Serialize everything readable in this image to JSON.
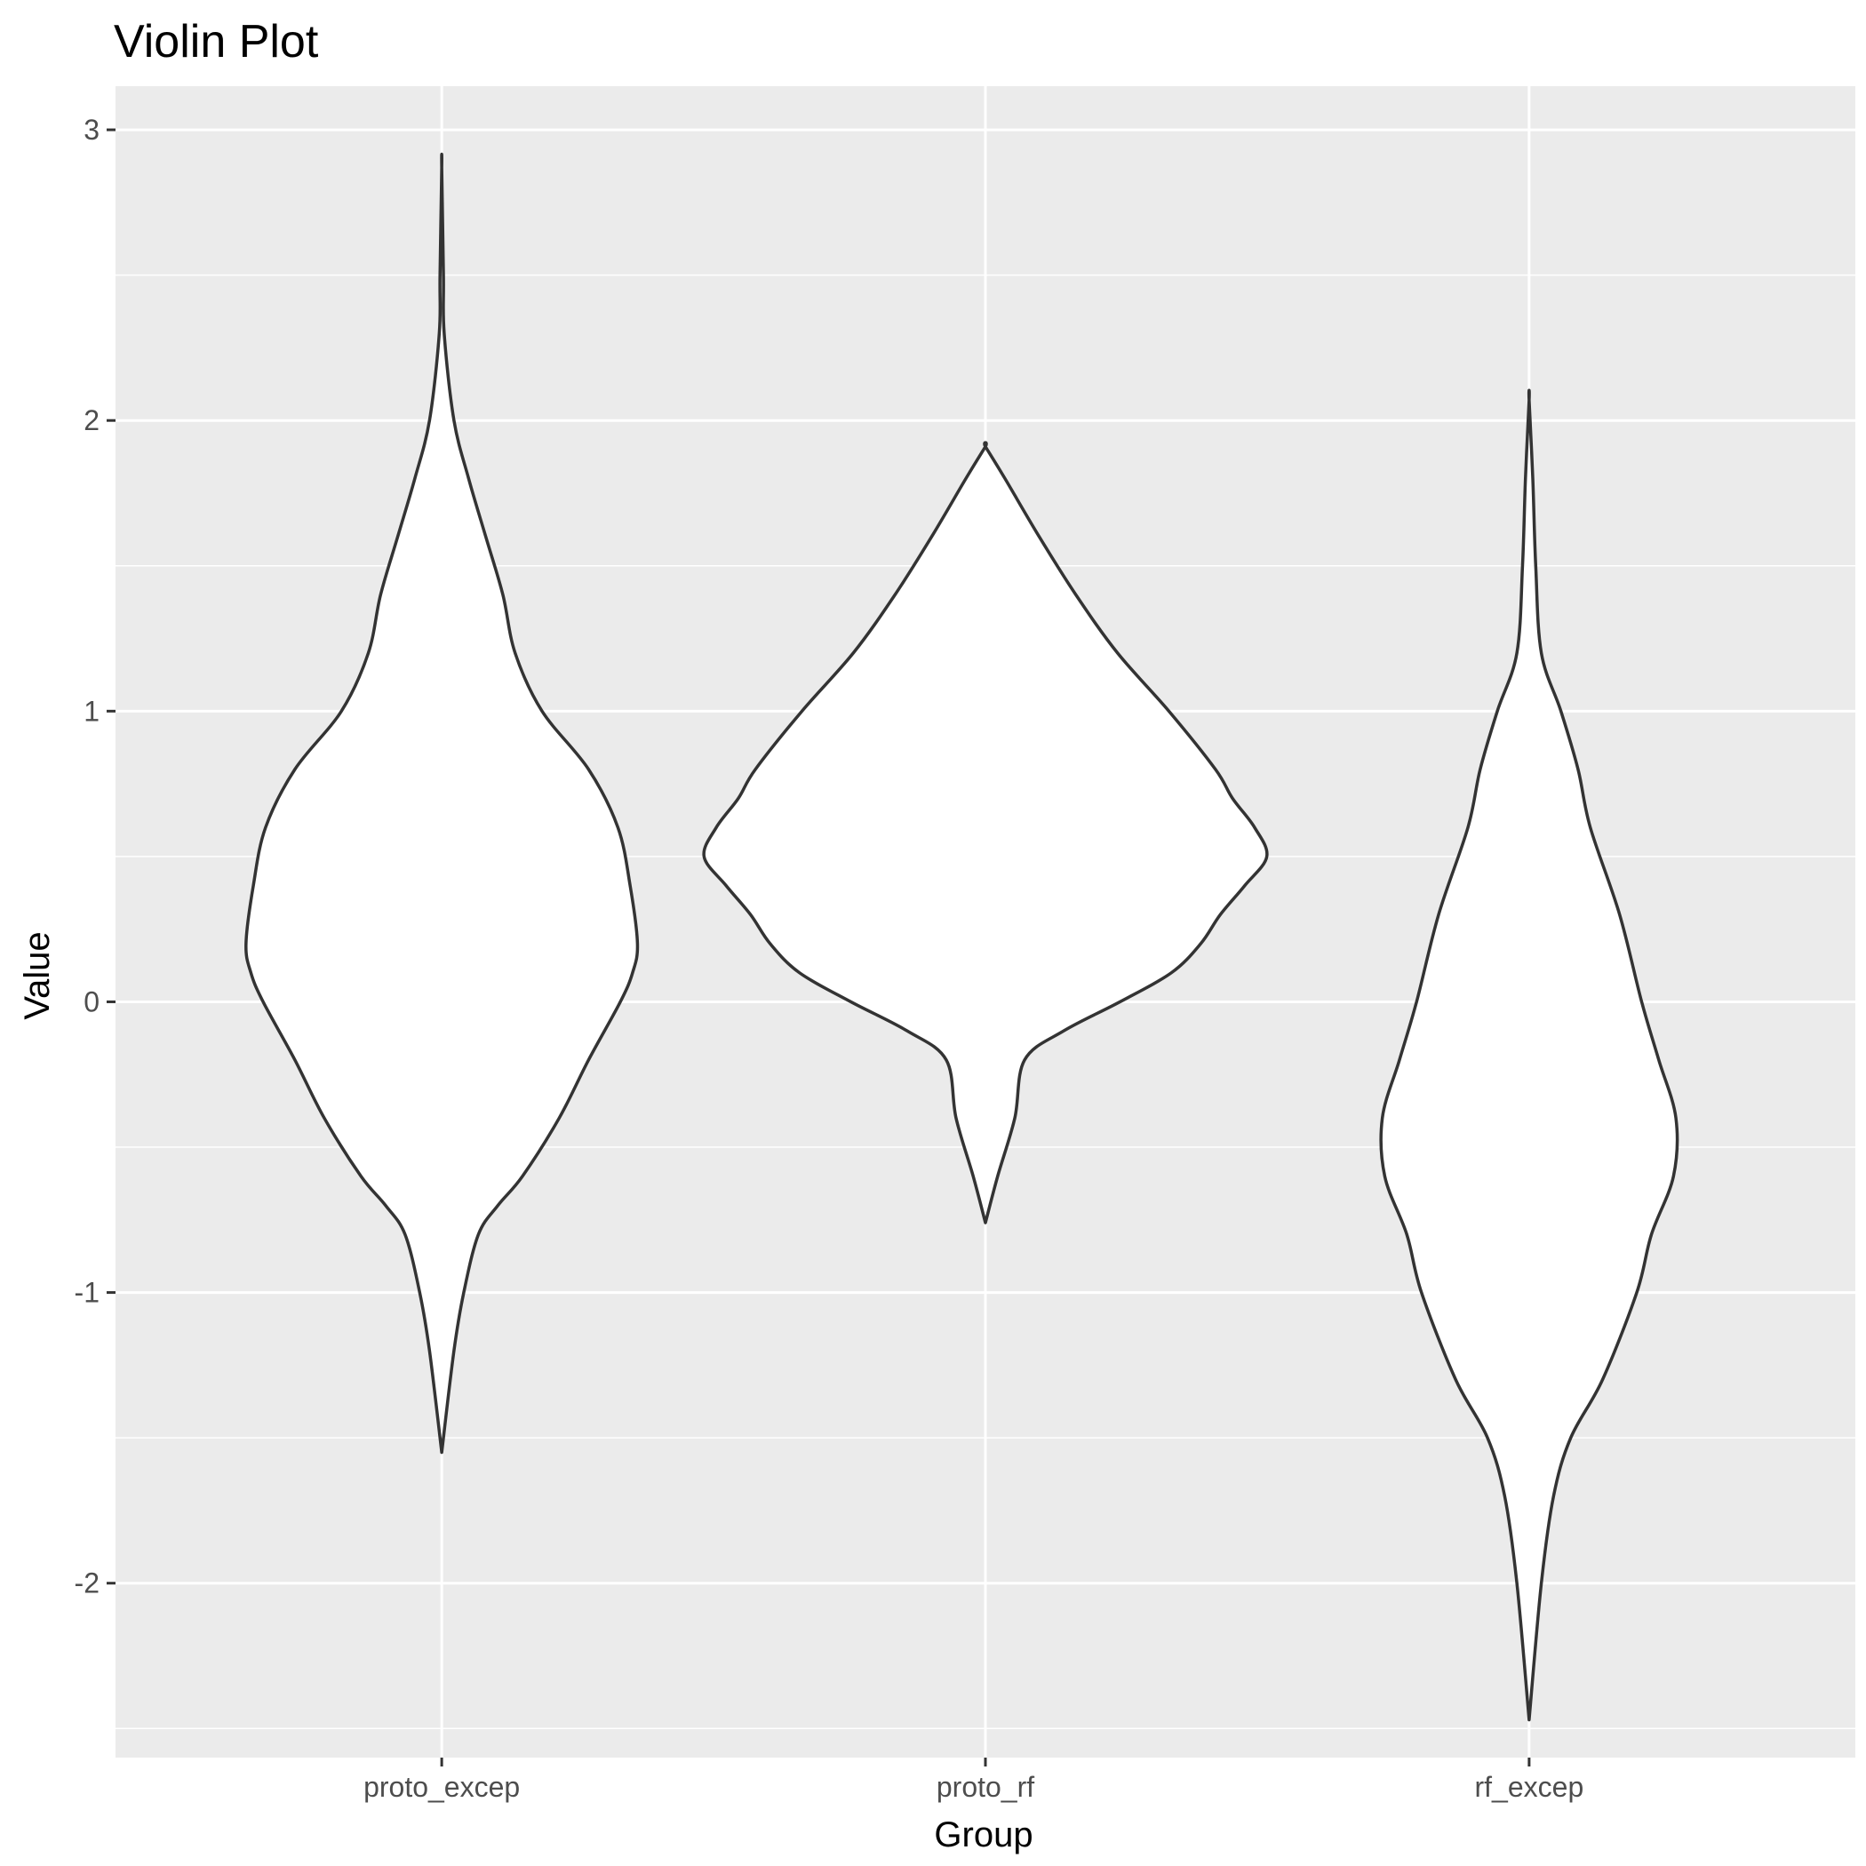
{
  "chart_data": {
    "type": "violin",
    "title": "Violin Plot",
    "xlabel": "Group",
    "ylabel": "Value",
    "categories": [
      "proto_excep",
      "proto_rf",
      "rf_excep"
    ],
    "ylim": [
      -2.6,
      3.15
    ],
    "y_ticks": [
      -2,
      -1,
      0,
      1,
      2,
      3
    ],
    "y_tick_labels": [
      "-2",
      "-1",
      "0",
      "1",
      "2",
      "3"
    ],
    "grid": true,
    "legend": "none",
    "fill_color": "#ffffff",
    "outline_color": "#333333",
    "panel_color": "#ebebeb",
    "series": [
      {
        "category": "proto_excep",
        "y_min": -1.55,
        "y_max": 2.87,
        "density_profile": [
          [
            -1.55,
            0.0
          ],
          [
            -1.2,
            0.05
          ],
          [
            -1.0,
            0.09
          ],
          [
            -0.8,
            0.15
          ],
          [
            -0.7,
            0.23
          ],
          [
            -0.6,
            0.33
          ],
          [
            -0.4,
            0.48
          ],
          [
            -0.2,
            0.6
          ],
          [
            0.0,
            0.73
          ],
          [
            0.1,
            0.78
          ],
          [
            0.2,
            0.8
          ],
          [
            0.4,
            0.77
          ],
          [
            0.6,
            0.72
          ],
          [
            0.8,
            0.6
          ],
          [
            1.0,
            0.41
          ],
          [
            1.2,
            0.3
          ],
          [
            1.4,
            0.25
          ],
          [
            1.6,
            0.18
          ],
          [
            1.8,
            0.11
          ],
          [
            2.0,
            0.05
          ],
          [
            2.3,
            0.01
          ],
          [
            2.5,
            0.007
          ],
          [
            2.87,
            0.0
          ]
        ]
      },
      {
        "category": "proto_rf",
        "y_min": -0.76,
        "y_max": 1.91,
        "density_profile": [
          [
            -0.76,
            0.0
          ],
          [
            -0.6,
            0.05
          ],
          [
            -0.4,
            0.12
          ],
          [
            -0.2,
            0.16
          ],
          [
            -0.1,
            0.32
          ],
          [
            0.0,
            0.55
          ],
          [
            0.1,
            0.76
          ],
          [
            0.2,
            0.88
          ],
          [
            0.3,
            0.96
          ],
          [
            0.4,
            1.06
          ],
          [
            0.5,
            1.15
          ],
          [
            0.6,
            1.1
          ],
          [
            0.7,
            1.01
          ],
          [
            0.8,
            0.94
          ],
          [
            1.0,
            0.75
          ],
          [
            1.2,
            0.54
          ],
          [
            1.4,
            0.37
          ],
          [
            1.6,
            0.22
          ],
          [
            1.8,
            0.08
          ],
          [
            1.91,
            0.0
          ]
        ]
      },
      {
        "category": "rf_excep",
        "y_min": -2.47,
        "y_max": 2.07,
        "density_profile": [
          [
            -2.47,
            0.0
          ],
          [
            -2.0,
            0.05
          ],
          [
            -1.7,
            0.1
          ],
          [
            -1.5,
            0.17
          ],
          [
            -1.3,
            0.3
          ],
          [
            -1.0,
            0.44
          ],
          [
            -0.8,
            0.5
          ],
          [
            -0.6,
            0.59
          ],
          [
            -0.4,
            0.6
          ],
          [
            -0.2,
            0.53
          ],
          [
            0.0,
            0.46
          ],
          [
            0.3,
            0.37
          ],
          [
            0.6,
            0.25
          ],
          [
            0.8,
            0.2
          ],
          [
            1.0,
            0.13
          ],
          [
            1.2,
            0.05
          ],
          [
            1.5,
            0.027
          ],
          [
            1.8,
            0.015
          ],
          [
            2.07,
            0.0
          ]
        ]
      }
    ]
  }
}
